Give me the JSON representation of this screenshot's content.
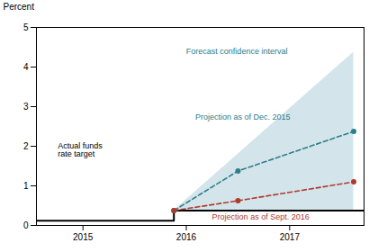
{
  "chart_data": {
    "type": "line",
    "ylabel": "Percent",
    "xlim": [
      2014.55,
      2017.72
    ],
    "xticks": [
      2015,
      2016,
      2017
    ],
    "ylim": [
      0,
      5
    ],
    "yticks": [
      0,
      1,
      2,
      3,
      4,
      5
    ],
    "series": [
      {
        "color": "#000000",
        "line_style": "solid",
        "marker": "none",
        "x": [
          2014.55,
          2015.88,
          2015.88,
          2017.72
        ],
        "values": [
          0.12,
          0.12,
          0.375,
          0.375
        ]
      },
      {
        "color": "#2e7d8a",
        "line_style": "dashed",
        "marker": "circle",
        "x": [
          2015.88,
          2016.5,
          2017.62
        ],
        "values": [
          0.375,
          1.375,
          2.375
        ]
      },
      {
        "color": "#b03a2e",
        "line_style": "dashed",
        "marker": "circle",
        "x": [
          2015.88,
          2016.5,
          2017.62
        ],
        "values": [
          0.375,
          0.625,
          1.1
        ]
      }
    ],
    "confidence_band": {
      "color": "#c8dfe6",
      "x": [
        2015.88,
        2017.62
      ],
      "lower": [
        0.375,
        0.375
      ],
      "upper": [
        0.375,
        4.375
      ]
    },
    "annotations": [
      {
        "text": "Actual funds\nrate target",
        "color": "#000000"
      },
      {
        "text": "Projection as of Dec. 2015",
        "color": "#2e7d8a"
      },
      {
        "text": "Projection as of Sept. 2016",
        "color": "#b03a2e"
      },
      {
        "text": "Forecast confidence interval",
        "color": "#2e7d8a"
      }
    ]
  }
}
